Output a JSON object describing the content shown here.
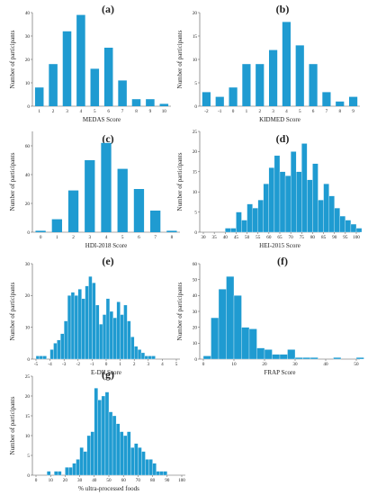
{
  "figure": {
    "bar_color": "#1f9bd1",
    "bar_edge_color": "#ffffff",
    "axis_color": "#555555"
  },
  "chart_data": [
    {
      "panel": "(a)",
      "type": "bar",
      "xlabel": "MEDAS Score",
      "ylabel": "Number of participants",
      "categories": [
        "1",
        "2",
        "3",
        "4",
        "5",
        "6",
        "7",
        "8",
        "9",
        "10"
      ],
      "values": [
        8,
        18,
        32,
        39,
        16,
        25,
        11,
        3,
        3,
        1
      ],
      "ylim": [
        0,
        40
      ],
      "yticks": [
        0,
        10,
        20,
        30,
        40
      ]
    },
    {
      "panel": "(b)",
      "type": "bar",
      "xlabel": "KIDMED Score",
      "ylabel": "Number of participants",
      "categories": [
        "-2",
        "-1",
        "0",
        "1",
        "2",
        "3",
        "4",
        "5",
        "6",
        "7",
        "8",
        "9"
      ],
      "values": [
        3,
        2,
        4,
        9,
        9,
        12,
        18,
        13,
        9,
        3,
        1,
        2
      ],
      "ylim": [
        0,
        20
      ],
      "yticks": [
        0,
        5,
        10,
        15,
        20
      ]
    },
    {
      "panel": "(c)",
      "type": "bar",
      "xlabel": "HDI-2018 Score",
      "ylabel": "Number of participants",
      "categories": [
        "0",
        "1",
        "2",
        "3",
        "4",
        "5",
        "6",
        "7",
        "8"
      ],
      "values": [
        1,
        9,
        29,
        50,
        62,
        44,
        30,
        15,
        1
      ],
      "ylim": [
        0,
        70
      ],
      "yticks": [
        0,
        20,
        40,
        60
      ]
    },
    {
      "panel": "(d)",
      "type": "bar",
      "xlabel": "HEI-2015 Score",
      "ylabel": "Number of participants",
      "x_start": 30,
      "bin_width": 2.5,
      "xticks": [
        "30",
        "35",
        "40",
        "45",
        "50",
        "55",
        "60",
        "65",
        "70",
        "75",
        "80",
        "85",
        "90",
        "95",
        "100"
      ],
      "values": [
        0,
        0,
        0,
        0,
        1,
        1,
        5,
        3,
        7,
        6,
        8,
        12,
        16,
        19,
        15,
        14,
        20,
        15,
        22,
        13,
        17,
        8,
        12,
        9,
        6,
        4,
        3,
        2,
        1,
        0,
        0,
        1
      ],
      "ylim": [
        0,
        25
      ],
      "yticks": [
        0,
        5,
        10,
        15,
        20,
        25
      ]
    },
    {
      "panel": "(e)",
      "type": "bar",
      "xlabel": "E-DII Score",
      "ylabel": "Number of participants",
      "x_start": -5,
      "bin_width": 0.25,
      "xticks": [
        "-5",
        "-4",
        "-3",
        "-2",
        "-1",
        "0",
        "1",
        "2",
        "3",
        "4",
        "5"
      ],
      "values": [
        1,
        1,
        1,
        0,
        3,
        5,
        6,
        8,
        12,
        20,
        21,
        20,
        22,
        19,
        23,
        26,
        24,
        17,
        11,
        14,
        19,
        15,
        13,
        18,
        14,
        17,
        12,
        7,
        4,
        3,
        2,
        1,
        1,
        1,
        0,
        0,
        0
      ],
      "ylim": [
        0,
        30
      ],
      "yticks": [
        0,
        10,
        20,
        30
      ]
    },
    {
      "panel": "(f)",
      "type": "bar",
      "xlabel": "FRAP Score",
      "ylabel": "Number of participants",
      "x_start": 0,
      "bin_width": 2.5,
      "xticks": [
        "0",
        "10",
        "20",
        "30",
        "40",
        "50"
      ],
      "values": [
        2,
        26,
        44,
        52,
        40,
        20,
        19,
        7,
        6,
        3,
        3,
        6,
        1,
        1,
        1,
        0,
        0,
        1,
        0,
        0,
        1
      ],
      "ylim": [
        0,
        60
      ],
      "yticks": [
        0,
        10,
        20,
        30,
        40,
        50,
        60
      ]
    },
    {
      "panel": "(g)",
      "type": "bar",
      "xlabel": "% ultra-processed foods",
      "ylabel": "Number of participants",
      "x_start": 0,
      "bin_width": 2.5,
      "xticks": [
        "0",
        "10",
        "20",
        "30",
        "40",
        "50",
        "60",
        "70",
        "80",
        "90",
        "100"
      ],
      "values": [
        0,
        0,
        0,
        1,
        0,
        1,
        1,
        0,
        2,
        2,
        3,
        4,
        7,
        6,
        10,
        11,
        22,
        19,
        20,
        21,
        16,
        15,
        13,
        11,
        10,
        11,
        7,
        8,
        7,
        6,
        4,
        4,
        3,
        1,
        1,
        1
      ],
      "ylim": [
        0,
        25
      ],
      "yticks": [
        0,
        5,
        10,
        15,
        20,
        25
      ]
    }
  ]
}
